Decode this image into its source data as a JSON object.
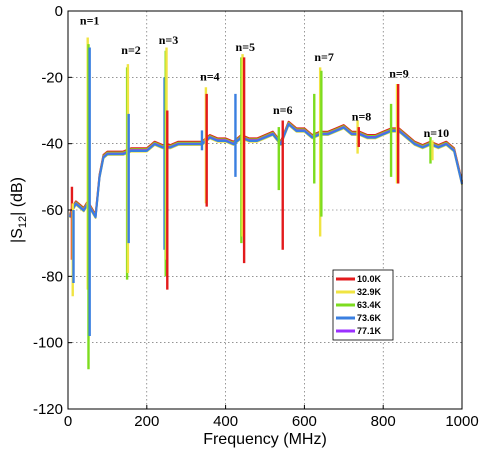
{
  "chart_data": {
    "type": "line",
    "xlabel": "Frequency (MHz)",
    "ylabel": "|S12| (dB)",
    "ylabel_main": "|S",
    "ylabel_sub": "12",
    "ylabel_tail": "| (dB)",
    "xlim": [
      0,
      1000
    ],
    "ylim": [
      -120,
      0
    ],
    "x_ticks": [
      0,
      200,
      400,
      600,
      800,
      1000
    ],
    "y_ticks": [
      0,
      -20,
      -40,
      -60,
      -80,
      -100,
      -120
    ],
    "grid": true,
    "legend_position": "lower-right",
    "annotations": [
      {
        "text": "n=1",
        "x": 55,
        "y": -4
      },
      {
        "text": "n=2",
        "x": 160,
        "y": -13
      },
      {
        "text": "n=3",
        "x": 255,
        "y": -10
      },
      {
        "text": "n=4",
        "x": 360,
        "y": -21
      },
      {
        "text": "n=5",
        "x": 450,
        "y": -12
      },
      {
        "text": "n=6",
        "x": 545,
        "y": -31
      },
      {
        "text": "n=7",
        "x": 650,
        "y": -15
      },
      {
        "text": "n=8",
        "x": 745,
        "y": -33
      },
      {
        "text": "n=9",
        "x": 840,
        "y": -20
      },
      {
        "text": "n=10",
        "x": 935,
        "y": -38
      }
    ],
    "series": [
      {
        "name": "10.0K",
        "color": "#e31a1c"
      },
      {
        "name": "32.9K",
        "color": "#f0e442"
      },
      {
        "name": "63.4K",
        "color": "#7ddc1f"
      },
      {
        "name": "73.6K",
        "color": "#3a7fe0"
      },
      {
        "name": "77.1K",
        "color": "#9b30ff"
      }
    ],
    "baseline": {
      "x": [
        5,
        10,
        20,
        30,
        40,
        50,
        60,
        70,
        80,
        90,
        100,
        120,
        140,
        160,
        180,
        200,
        220,
        240,
        260,
        280,
        300,
        320,
        340,
        360,
        380,
        400,
        420,
        440,
        460,
        480,
        500,
        520,
        540,
        560,
        580,
        600,
        620,
        640,
        660,
        680,
        700,
        720,
        740,
        760,
        780,
        800,
        820,
        840,
        860,
        880,
        900,
        920,
        940,
        960,
        980,
        1000
      ],
      "y": [
        -62,
        -60,
        -58,
        -59,
        -60,
        -58,
        -60,
        -62,
        -50,
        -44,
        -43,
        -43,
        -43,
        -42,
        -42,
        -42,
        -40,
        -41,
        -41,
        -40,
        -40,
        -40,
        -40,
        -38,
        -39,
        -39,
        -40,
        -38,
        -39,
        -39,
        -38,
        -37,
        -40,
        -34,
        -36,
        -36,
        -38,
        -37,
        -37,
        -36,
        -35,
        -37,
        -37,
        -38,
        -38,
        -37,
        -36,
        -36,
        -38,
        -40,
        -41,
        -40,
        -41,
        -40,
        -42,
        -52
      ]
    },
    "resonances": [
      {
        "x": 10,
        "color": "#e31a1c",
        "top": -53,
        "bottom": -75
      },
      {
        "x": 12,
        "color": "#f0e442",
        "top": -58,
        "bottom": -86
      },
      {
        "x": 14,
        "color": "#3a7fe0",
        "top": -60,
        "bottom": -82
      },
      {
        "x": 50,
        "color": "#f0e442",
        "top": -8,
        "bottom": -84
      },
      {
        "x": 52,
        "color": "#7ddc1f",
        "top": -10,
        "bottom": -108
      },
      {
        "x": 55,
        "color": "#3a7fe0",
        "top": -11,
        "bottom": -98
      },
      {
        "x": 150,
        "color": "#7ddc1f",
        "top": -17,
        "bottom": -81
      },
      {
        "x": 152,
        "color": "#f0e442",
        "top": -16,
        "bottom": -79
      },
      {
        "x": 154,
        "color": "#3a7fe0",
        "top": -31,
        "bottom": -70
      },
      {
        "x": 245,
        "color": "#3a7fe0",
        "top": -20,
        "bottom": -72
      },
      {
        "x": 248,
        "color": "#7ddc1f",
        "top": -12,
        "bottom": -80
      },
      {
        "x": 250,
        "color": "#f0e442",
        "top": -11,
        "bottom": -75
      },
      {
        "x": 252,
        "color": "#e31a1c",
        "top": -30,
        "bottom": -84
      },
      {
        "x": 340,
        "color": "#3a7fe0",
        "top": -36,
        "bottom": -42
      },
      {
        "x": 350,
        "color": "#f0e442",
        "top": -23,
        "bottom": -58
      },
      {
        "x": 352,
        "color": "#e31a1c",
        "top": -25,
        "bottom": -59
      },
      {
        "x": 425,
        "color": "#3a7fe0",
        "top": -25,
        "bottom": -50
      },
      {
        "x": 440,
        "color": "#7ddc1f",
        "top": -14,
        "bottom": -70
      },
      {
        "x": 443,
        "color": "#f0e442",
        "top": -13,
        "bottom": -68
      },
      {
        "x": 447,
        "color": "#e31a1c",
        "top": -14,
        "bottom": -76
      },
      {
        "x": 535,
        "color": "#7ddc1f",
        "top": -35,
        "bottom": -54
      },
      {
        "x": 545,
        "color": "#e31a1c",
        "top": -33,
        "bottom": -72
      },
      {
        "x": 625,
        "color": "#7ddc1f",
        "top": -25,
        "bottom": -52
      },
      {
        "x": 640,
        "color": "#f0e442",
        "top": -17,
        "bottom": -68
      },
      {
        "x": 643,
        "color": "#7ddc1f",
        "top": -18,
        "bottom": -62
      },
      {
        "x": 735,
        "color": "#f0e442",
        "top": -33,
        "bottom": -43
      },
      {
        "x": 738,
        "color": "#e31a1c",
        "top": -35,
        "bottom": -41
      },
      {
        "x": 820,
        "color": "#7ddc1f",
        "top": -28,
        "bottom": -50
      },
      {
        "x": 835,
        "color": "#f0e442",
        "top": -22,
        "bottom": -52
      },
      {
        "x": 838,
        "color": "#e31a1c",
        "top": -22,
        "bottom": -52
      },
      {
        "x": 920,
        "color": "#7ddc1f",
        "top": -38,
        "bottom": -46
      },
      {
        "x": 925,
        "color": "#f0e442",
        "top": -39,
        "bottom": -45
      }
    ]
  }
}
